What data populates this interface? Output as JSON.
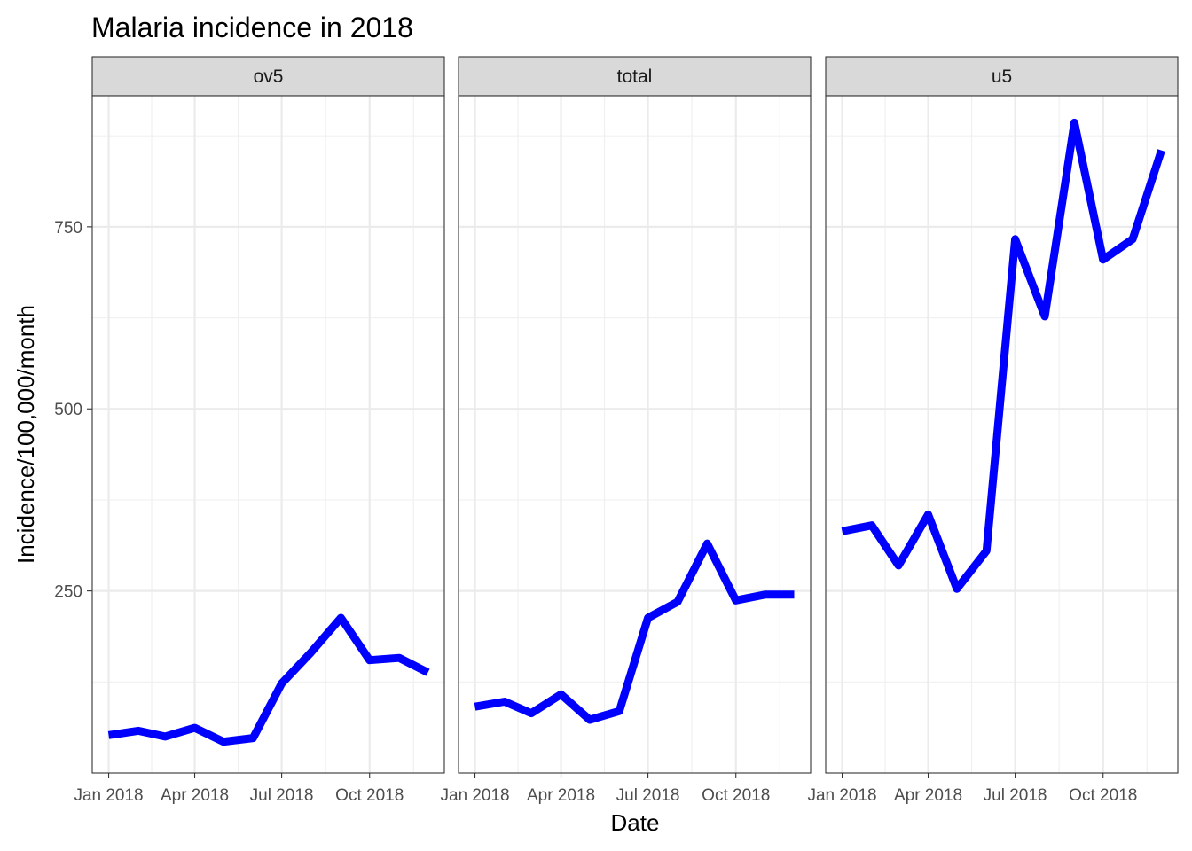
{
  "chart_data": {
    "type": "line",
    "title": "Malaria incidence in 2018",
    "xlabel": "Date",
    "ylabel": "Incidence/100,000/month",
    "ylim": [
      0,
      930
    ],
    "yticks": [
      250,
      500,
      750
    ],
    "x_ticks": [
      "Jan 2018",
      "Apr 2018",
      "Jul 2018",
      "Oct 2018"
    ],
    "x": [
      "2018-01",
      "2018-02",
      "2018-03",
      "2018-04",
      "2018-05",
      "2018-06",
      "2018-07",
      "2018-08",
      "2018-09",
      "2018-10",
      "2018-11",
      "2018-12"
    ],
    "facets": [
      "ov5",
      "total",
      "u5"
    ],
    "line_color": "#0000ff",
    "grid": true,
    "series": [
      {
        "facet": "ov5",
        "values": [
          52,
          58,
          50,
          62,
          43,
          48,
          123,
          166,
          213,
          155,
          158,
          138
        ]
      },
      {
        "facet": "total",
        "values": [
          91,
          98,
          82,
          108,
          73,
          85,
          213,
          235,
          315,
          237,
          245,
          245
        ]
      },
      {
        "facet": "u5",
        "values": [
          332,
          340,
          285,
          355,
          253,
          305,
          733,
          627,
          893,
          705,
          733,
          855
        ]
      }
    ]
  }
}
